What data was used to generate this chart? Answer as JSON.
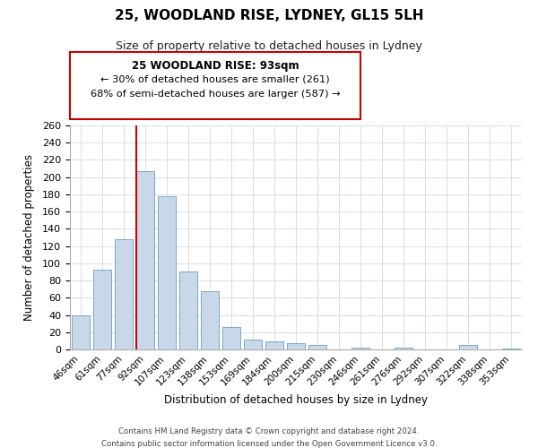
{
  "title": "25, WOODLAND RISE, LYDNEY, GL15 5LH",
  "subtitle": "Size of property relative to detached houses in Lydney",
  "xlabel": "Distribution of detached houses by size in Lydney",
  "ylabel": "Number of detached properties",
  "categories": [
    "46sqm",
    "61sqm",
    "77sqm",
    "92sqm",
    "107sqm",
    "123sqm",
    "138sqm",
    "153sqm",
    "169sqm",
    "184sqm",
    "200sqm",
    "215sqm",
    "230sqm",
    "246sqm",
    "261sqm",
    "276sqm",
    "292sqm",
    "307sqm",
    "322sqm",
    "338sqm",
    "353sqm"
  ],
  "values": [
    40,
    93,
    128,
    207,
    178,
    90,
    68,
    26,
    11,
    9,
    7,
    5,
    0,
    2,
    0,
    2,
    0,
    0,
    5,
    0,
    1
  ],
  "bar_color": "#c8d8e8",
  "bar_edge_color": "#7ca6c8",
  "highlight_bar_index": 3,
  "highlight_line_color": "#cc0000",
  "ylim": [
    0,
    260
  ],
  "yticks": [
    0,
    20,
    40,
    60,
    80,
    100,
    120,
    140,
    160,
    180,
    200,
    220,
    240,
    260
  ],
  "annotation_title": "25 WOODLAND RISE: 93sqm",
  "annotation_line1": "← 30% of detached houses are smaller (261)",
  "annotation_line2": "68% of semi-detached houses are larger (587) →",
  "annotation_box_color": "#ffffff",
  "annotation_box_edge_color": "#cc0000",
  "footer_line1": "Contains HM Land Registry data © Crown copyright and database right 2024.",
  "footer_line2": "Contains public sector information licensed under the Open Government Licence v3.0.",
  "background_color": "#ffffff",
  "grid_color": "#d0d8e8"
}
